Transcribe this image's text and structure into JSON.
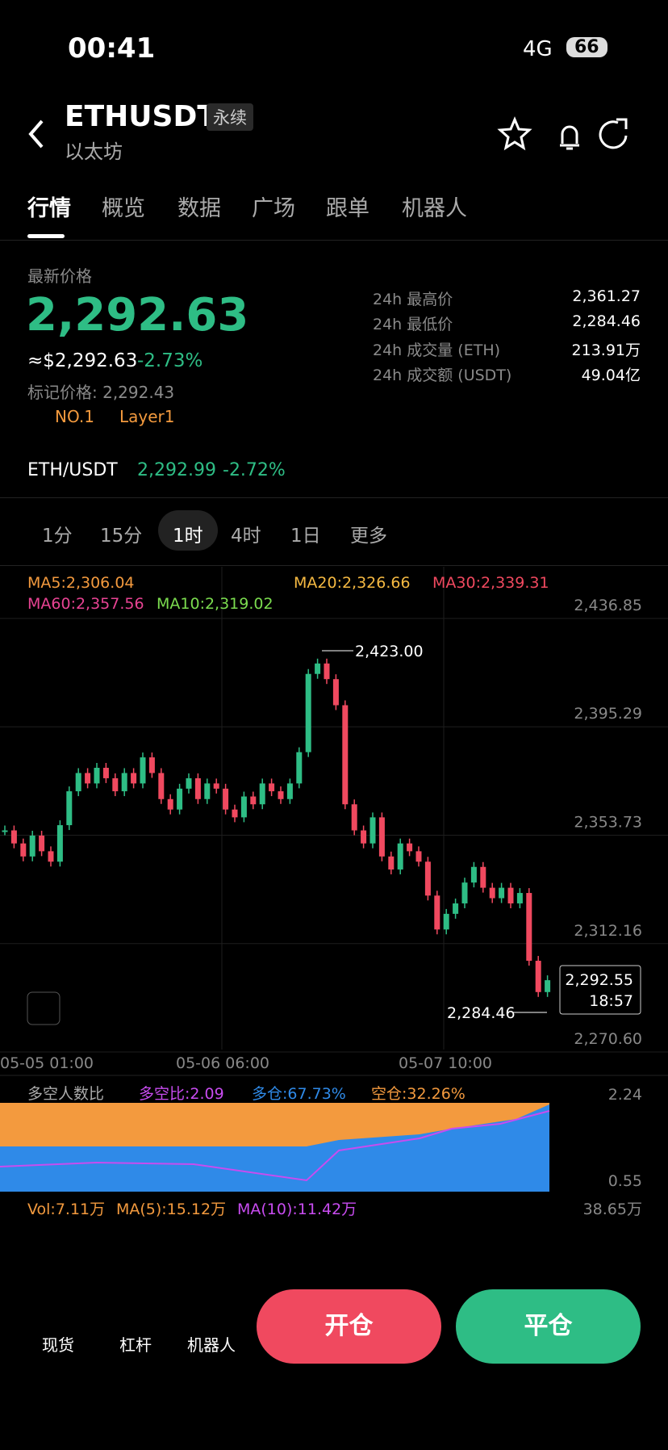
{
  "status_bar": {
    "time": "00:41",
    "network": "4G",
    "battery": "66"
  },
  "header": {
    "symbol": "ETHUSDT",
    "badge": "永续",
    "subtitle": "以太坊"
  },
  "tabs": [
    "行情",
    "概览",
    "数据",
    "广场",
    "跟单",
    "机器人"
  ],
  "price_panel": {
    "label": "最新价格",
    "last_price": "2,292.63",
    "usd_price": "≈$2,292.63",
    "change": "-2.73%",
    "mark_price": "标记价格: 2,292.43",
    "rank": "NO.1",
    "tag": "Layer1",
    "stats": [
      {
        "label": "24h 最高价",
        "value": "2,361.27"
      },
      {
        "label": "24h 最低价",
        "value": "2,284.46"
      },
      {
        "label": "24h 成交量 (ETH)",
        "value": "213.91万"
      },
      {
        "label": "24h 成交额 (USDT)",
        "value": "49.04亿"
      }
    ]
  },
  "spot_row": {
    "pair": "ETH/USDT",
    "price": "2,292.99",
    "change": "-2.72%"
  },
  "intervals": [
    "1分",
    "15分",
    "1时",
    "4时",
    "1日",
    "更多"
  ],
  "kline": {
    "ma": [
      "MA5:2,306.04",
      "MA10:2,319.02",
      "MA20:2,326.66",
      "MA30:2,339.31",
      "MA60:2,357.56"
    ],
    "ylim": [
      2270.6,
      2436.85
    ],
    "yticks": [
      {
        "value": 2436.85,
        "label": "2,436.85"
      },
      {
        "value": 2395.29,
        "label": "2,395.29"
      },
      {
        "value": 2353.73,
        "label": "2,353.73"
      },
      {
        "value": 2312.16,
        "label": "2,312.16"
      },
      {
        "value": 2270.6,
        "label": "2,270.60"
      }
    ],
    "high_label": "2,423.00",
    "low_label": "2,284.46",
    "last_label": "2,292.55",
    "countdown": "18:57",
    "x_labels": [
      "05-05 01:00",
      "05-06 06:00",
      "05-07 10:00"
    ],
    "close": [
      2350,
      2345,
      2340,
      2348,
      2342,
      2338,
      2352,
      2365,
      2372,
      2368,
      2374,
      2370,
      2365,
      2372,
      2368,
      2378,
      2372,
      2362,
      2358,
      2366,
      2370,
      2362,
      2368,
      2366,
      2358,
      2355,
      2363,
      2360,
      2368,
      2365,
      2362,
      2368,
      2380,
      2410,
      2414,
      2408,
      2398,
      2360,
      2350,
      2345,
      2355,
      2340,
      2335,
      2345,
      2342,
      2338,
      2325,
      2312,
      2318,
      2322,
      2330,
      2336,
      2328,
      2324,
      2328,
      2322,
      2326,
      2300,
      2288,
      2292.55
    ]
  },
  "ratio_panel": {
    "title": "多空人数比",
    "ratio": "多空比:2.09",
    "long": "多仓:67.73%",
    "short": "空仓:32.26%",
    "axis_top": "2.24",
    "axis_bottom": "0.55"
  },
  "volume_panel": {
    "vol": "Vol:7.11万",
    "ma5": "MA(5):15.12万",
    "ma10": "MA(10):11.42万",
    "axis": "38.65万"
  },
  "bottom_bar": {
    "items": [
      "现货",
      "杠杆",
      "机器人"
    ],
    "open": "开仓",
    "close": "平仓"
  }
}
